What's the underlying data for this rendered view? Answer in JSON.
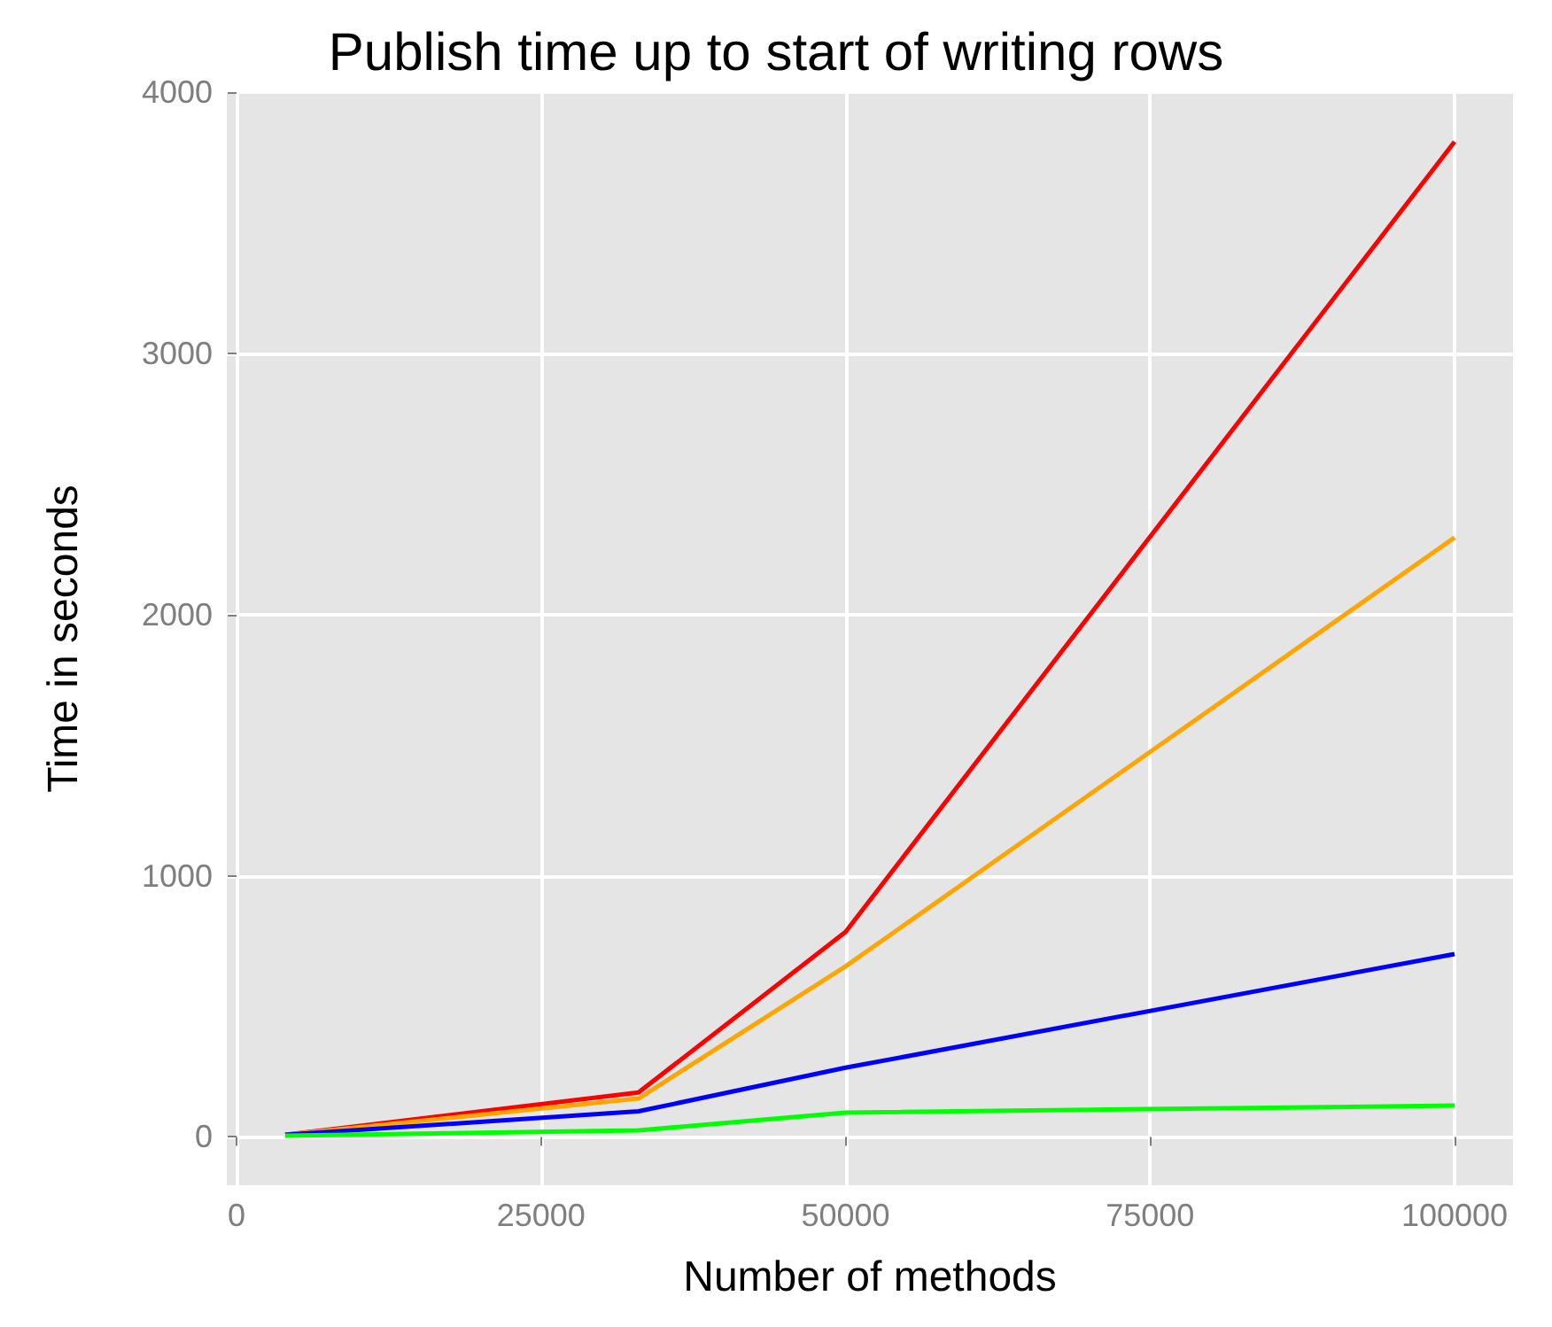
{
  "chart_data": {
    "type": "line",
    "title": "Publish time up to start of writing rows",
    "xlabel": "Number of methods",
    "ylabel": "Time in seconds",
    "x": [
      4000,
      33000,
      50000,
      100000
    ],
    "series": [
      {
        "color": "#ff0000",
        "values": [
          8,
          170,
          785,
          3810
        ]
      },
      {
        "color": "#ffa500",
        "values": [
          8,
          147,
          653,
          2295
        ]
      },
      {
        "color": "#0000ff",
        "values": [
          8,
          98,
          265,
          700
        ]
      },
      {
        "color": "#00ff00",
        "values": [
          5,
          25,
          93,
          120
        ]
      }
    ],
    "xlim": [
      -800,
      104800
    ],
    "ylim": [
      -185,
      4000
    ],
    "xticks": [
      0,
      25000,
      50000,
      75000,
      100000
    ],
    "yticks": [
      0,
      1000,
      2000,
      3000,
      4000
    ],
    "grid": true,
    "marker": "none",
    "line_style": "solid"
  }
}
